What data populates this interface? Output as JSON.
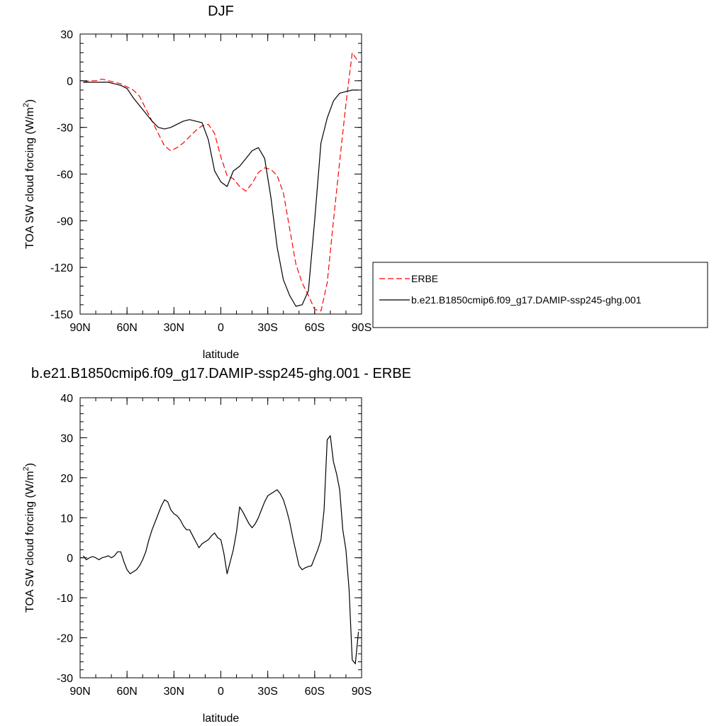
{
  "chart_data": [
    {
      "type": "line",
      "title": "DJF",
      "xlabel": "latitude",
      "ylabel": "TOA SW cloud forcing (W/m",
      "ylabel_sup": "2",
      "ylabel_end": ")",
      "xlim": [
        90,
        -90
      ],
      "ylim": [
        -150,
        30
      ],
      "xticks": [
        90,
        60,
        30,
        0,
        -30,
        -60,
        -90
      ],
      "xtick_labels": [
        "90N",
        "60N",
        "30N",
        "0",
        "30S",
        "60S",
        "90S"
      ],
      "yticks": [
        30,
        0,
        -30,
        -60,
        -90,
        -120,
        -150
      ],
      "ytick_labels": [
        "30",
        "0",
        "-30",
        "-60",
        "-90",
        "-120",
        "-150"
      ],
      "series": [
        {
          "name": "ERBE",
          "color": "#ff0000",
          "style": "dashed",
          "x": [
            88,
            84,
            80,
            76,
            72,
            68,
            64,
            60,
            56,
            52,
            48,
            44,
            40,
            36,
            32,
            28,
            24,
            20,
            16,
            12,
            8,
            4,
            0,
            -4,
            -8,
            -12,
            -16,
            -20,
            -24,
            -28,
            -32,
            -36,
            -40,
            -44,
            -48,
            -52,
            -56,
            -60,
            -64,
            -68,
            -72,
            -76,
            -80,
            -84,
            -88
          ],
          "y": [
            -1,
            0,
            0,
            1,
            0,
            -1,
            -2,
            -4,
            -6,
            -10,
            -18,
            -26,
            -34,
            -42,
            -45,
            -43,
            -40,
            -36,
            -32,
            -29,
            -28,
            -34,
            -49,
            -61,
            -63,
            -68,
            -71,
            -66,
            -59,
            -56,
            -57,
            -61,
            -72,
            -95,
            -118,
            -130,
            -138,
            -147,
            -148,
            -130,
            -90,
            -52,
            -15,
            18,
            12
          ]
        },
        {
          "name": "b.e21.B1850cmip6.f09_g17.DAMIP-ssp245-ghg.001",
          "color": "#000000",
          "style": "solid",
          "x": [
            88,
            84,
            80,
            76,
            72,
            68,
            64,
            60,
            56,
            52,
            48,
            44,
            40,
            36,
            32,
            28,
            24,
            20,
            16,
            12,
            8,
            4,
            0,
            -4,
            -8,
            -12,
            -16,
            -20,
            -24,
            -28,
            -32,
            -36,
            -40,
            -44,
            -48,
            -52,
            -56,
            -60,
            -64,
            -68,
            -72,
            -76,
            -80,
            -84,
            -88
          ],
          "y": [
            -1,
            -1,
            -1,
            -1,
            -1,
            -2,
            -3,
            -5,
            -11,
            -16,
            -21,
            -26,
            -30,
            -31,
            -30,
            -28,
            -26,
            -25,
            -26,
            -27,
            -38,
            -58,
            -65,
            -68,
            -58,
            -55,
            -50,
            -45,
            -43,
            -50,
            -75,
            -107,
            -128,
            -138,
            -145,
            -144,
            -135,
            -90,
            -40,
            -24,
            -13,
            -8,
            -7,
            -6,
            -6
          ]
        }
      ],
      "legend": {
        "position": "right",
        "entries": [
          "ERBE",
          "b.e21.B1850cmip6.f09_g17.DAMIP-ssp245-ghg.001"
        ]
      }
    },
    {
      "type": "line",
      "title": "b.e21.B1850cmip6.f09_g17.DAMIP-ssp245-ghg.001 - ERBE",
      "xlabel": "latitude",
      "ylabel": "TOA SW cloud forcing (W/m",
      "ylabel_sup": "2",
      "ylabel_end": ")",
      "xlim": [
        90,
        -90
      ],
      "ylim": [
        -30,
        40
      ],
      "xticks": [
        90,
        60,
        30,
        0,
        -30,
        -60,
        -90
      ],
      "xtick_labels": [
        "90N",
        "60N",
        "30N",
        "0",
        "30S",
        "60S",
        "90S"
      ],
      "yticks": [
        40,
        30,
        20,
        10,
        0,
        -10,
        -20,
        -30
      ],
      "ytick_labels": [
        "40",
        "30",
        "20",
        "10",
        "0",
        "-10",
        "-20",
        "-30"
      ],
      "series": [
        {
          "name": "b.e21.B1850cmip6.f09_g17.DAMIP-ssp245-ghg.001 - ERBE",
          "color": "#000000",
          "style": "solid",
          "x": [
            88,
            86,
            84,
            82,
            80,
            78,
            76,
            74,
            72,
            70,
            68,
            66,
            64,
            62,
            60,
            58,
            56,
            54,
            52,
            50,
            48,
            46,
            44,
            42,
            40,
            38,
            36,
            34,
            32,
            30,
            28,
            26,
            24,
            22,
            20,
            18,
            16,
            14,
            12,
            10,
            8,
            6,
            4,
            2,
            0,
            -2,
            -4,
            -6,
            -8,
            -10,
            -12,
            -14,
            -16,
            -18,
            -20,
            -22,
            -24,
            -26,
            -28,
            -30,
            -32,
            -34,
            -36,
            -38,
            -40,
            -42,
            -44,
            -46,
            -48,
            -50,
            -52,
            -54,
            -56,
            -58,
            -60,
            -62,
            -64,
            -66,
            -68,
            -70,
            -72,
            -74,
            -76,
            -78,
            -80,
            -82,
            -84,
            -86,
            -88
          ],
          "y": [
            0.5,
            -0.5,
            0,
            0.3,
            0,
            -0.5,
            0,
            0.2,
            0.5,
            0,
            0.5,
            1.5,
            1.5,
            -1,
            -3,
            -4,
            -3.5,
            -3,
            -2,
            -0.5,
            1.5,
            4.5,
            7,
            9,
            11,
            13,
            14.5,
            14,
            12,
            11,
            10.5,
            9.5,
            8,
            7,
            7,
            5.5,
            4,
            2.5,
            3.5,
            4,
            4.5,
            5.5,
            6.2,
            5,
            4.5,
            1,
            -4,
            -1,
            2,
            6.5,
            12.7,
            11.5,
            10,
            8.5,
            7.5,
            8.5,
            10,
            12,
            14,
            15.5,
            16,
            16.5,
            17,
            16,
            14.5,
            12,
            9,
            5,
            1.5,
            -2,
            -3,
            -2.5,
            -2.2,
            -2,
            0,
            2,
            4.5,
            12,
            29.5,
            30.5,
            24,
            21,
            17,
            7,
            2,
            -8,
            -25.5,
            -26.5,
            -18.5
          ]
        }
      ]
    }
  ]
}
